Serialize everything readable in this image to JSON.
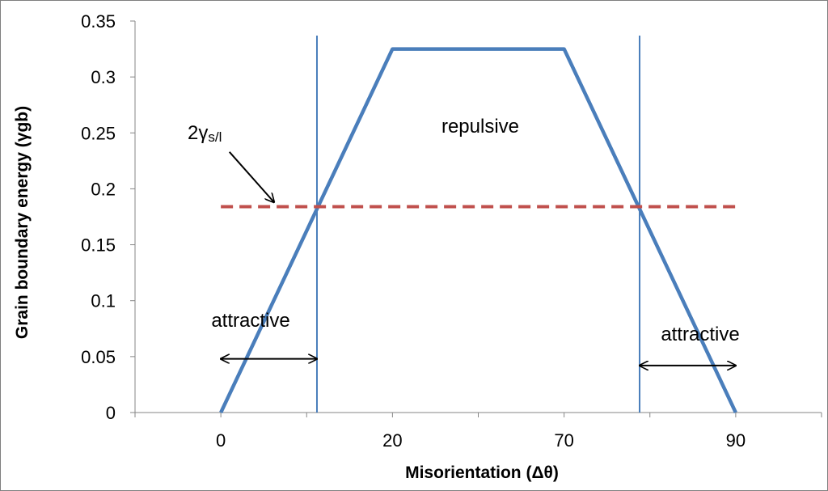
{
  "chart_data": {
    "type": "line",
    "title": "",
    "xlabel": "Misorientation (Δθ)",
    "ylabel": "Grain boundary energy (γgb)",
    "ylim": [
      0,
      0.35
    ],
    "y_ticks": [
      "0",
      "0.05",
      "0.1",
      "0.15",
      "0.2",
      "0.25",
      "0.3",
      "0.35"
    ],
    "y_tick_values": [
      0,
      0.05,
      0.1,
      0.15,
      0.2,
      0.25,
      0.3,
      0.35
    ],
    "x_tick_labels": [
      "0",
      "20",
      "70",
      "90"
    ],
    "x_tick_label_positions": [
      0,
      2,
      4,
      6
    ],
    "x_category_range": [
      -1,
      7
    ],
    "x_tick_count": 8,
    "grid": false,
    "series": [
      {
        "name": "grain boundary energy",
        "color": "#4a7ebb",
        "style": "solid",
        "points": [
          [
            0,
            0
          ],
          [
            2,
            0.325
          ],
          [
            4,
            0.325
          ],
          [
            6,
            0
          ]
        ]
      },
      {
        "name": "2γs/l",
        "color": "#c0504d",
        "style": "dashed",
        "points": [
          [
            0,
            0.184
          ],
          [
            6,
            0.184
          ]
        ]
      }
    ],
    "vertical_lines": [
      {
        "x": 1.12,
        "y_top": 0.337,
        "color": "#4a7ebb"
      },
      {
        "x": 4.88,
        "y_top": 0.337,
        "color": "#4a7ebb"
      }
    ],
    "annotations": {
      "repulsive": "repulsive",
      "attractive_left": "attractive",
      "attractive_right": "attractive",
      "gamma_prefix": "2γ",
      "gamma_sub": "s/l"
    },
    "arrows": [
      {
        "name": "attractive-left",
        "from": [
          0,
          0.048
        ],
        "to": [
          1.12,
          0.048
        ],
        "double": true
      },
      {
        "name": "attractive-right",
        "from": [
          4.88,
          0.042
        ],
        "to": [
          6,
          0.042
        ],
        "double": true
      },
      {
        "name": "gamma-pointer",
        "from": [
          0.1,
          0.233
        ],
        "to": [
          0.62,
          0.188
        ],
        "double": false
      }
    ]
  }
}
